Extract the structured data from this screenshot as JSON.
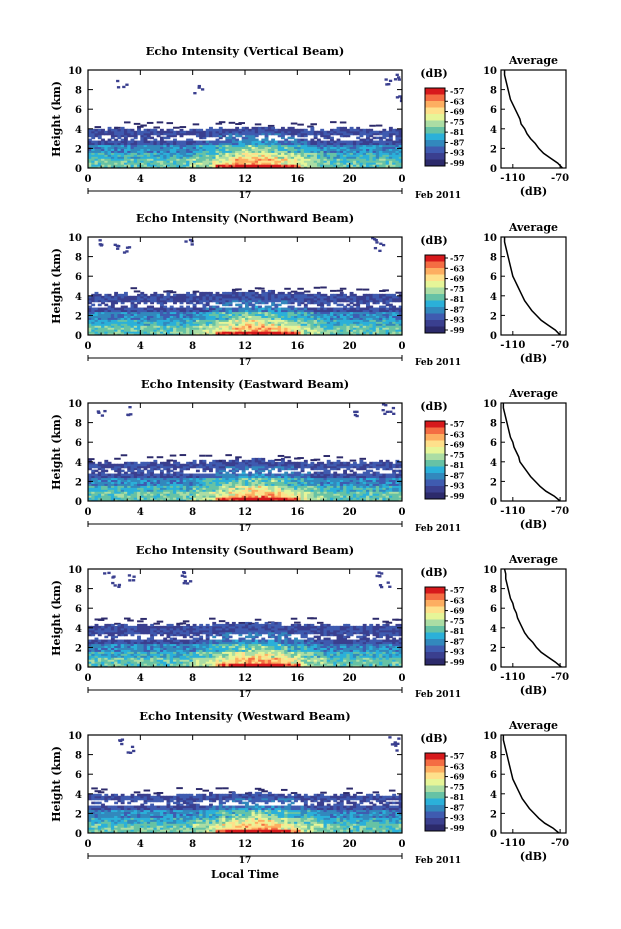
{
  "figure": {
    "bottom_xlabel": "Local Time",
    "date_label": "Feb 2011",
    "day_label": "17"
  },
  "colorbar": {
    "unit_label": "(dB)",
    "tick_labels": [
      "-57",
      "-63",
      "-69",
      "-75",
      "-81",
      "-87",
      "-93",
      "-99"
    ],
    "colors": [
      "#d7191c",
      "#f46d43",
      "#fdae61",
      "#fee08b",
      "#e6f598",
      "#abdda4",
      "#66c2a5",
      "#2bb0d9",
      "#3288bd",
      "#3f5bb0",
      "#3a3f8f",
      "#2c2a6b"
    ]
  },
  "chart_data": [
    {
      "type": "heatmap",
      "title": "Echo Intensity (Vertical Beam)",
      "ylabel": "Height (km)",
      "xlabel": "Local Time",
      "x_ticks": [
        "0",
        "4",
        "8",
        "12",
        "16",
        "20",
        "0"
      ],
      "y_ticks": [
        "0",
        "2",
        "4",
        "6",
        "8",
        "10"
      ],
      "xlim": [
        0,
        24
      ],
      "ylim": [
        0,
        10
      ],
      "top_layer_km": 4.0,
      "sparse_high": [
        [
          2.5,
          8.7
        ],
        [
          8.3,
          8.1
        ],
        [
          22.8,
          8.8
        ],
        [
          23.4,
          9.5
        ],
        [
          23.6,
          7.2
        ]
      ],
      "profile": {
        "title": "Average",
        "xlabel": "(dB)",
        "x_ticks": [
          "-110",
          "-70"
        ],
        "xlim": [
          -120,
          -65
        ],
        "heights_km": [
          0,
          0.5,
          1,
          1.5,
          2,
          2.5,
          3,
          3.5,
          4,
          4.5,
          5,
          5.5,
          6,
          6.5,
          7,
          7.5,
          8,
          8.5,
          9,
          9.5,
          10
        ],
        "values_db": [
          -68,
          -72,
          -78,
          -84,
          -88,
          -91,
          -95,
          -98,
          -100,
          -103,
          -104,
          -106,
          -108,
          -110,
          -112,
          -113,
          -114,
          -115,
          -116,
          -117,
          -117
        ]
      }
    },
    {
      "type": "heatmap",
      "title": "Echo Intensity (Northward Beam)",
      "ylabel": "Height (km)",
      "xlabel": "Local Time",
      "x_ticks": [
        "0",
        "4",
        "8",
        "12",
        "16",
        "20",
        "0"
      ],
      "y_ticks": [
        "0",
        "2",
        "4",
        "6",
        "8",
        "10"
      ],
      "xlim": [
        0,
        24
      ],
      "ylim": [
        0,
        10
      ],
      "top_layer_km": 4.2,
      "sparse_high": [
        [
          0.8,
          9.4
        ],
        [
          1.9,
          9.2
        ],
        [
          2.8,
          8.9
        ],
        [
          7.5,
          9.6
        ],
        [
          21.9,
          9.6
        ],
        [
          22.2,
          9.1
        ]
      ],
      "profile": {
        "title": "Average",
        "xlabel": "(dB)",
        "x_ticks": [
          "-110",
          "-70"
        ],
        "xlim": [
          -120,
          -65
        ],
        "heights_km": [
          0,
          0.5,
          1,
          1.5,
          2,
          2.5,
          3,
          3.5,
          4,
          4.5,
          5,
          5.5,
          6,
          6.5,
          7,
          7.5,
          8,
          8.5,
          9,
          9.5,
          10
        ],
        "values_db": [
          -70,
          -74,
          -80,
          -86,
          -90,
          -94,
          -97,
          -100,
          -102,
          -104,
          -106,
          -108,
          -110,
          -111,
          -112,
          -113,
          -114,
          -115,
          -116,
          -117,
          -117
        ]
      }
    },
    {
      "type": "heatmap",
      "title": "Echo Intensity (Eastward Beam)",
      "ylabel": "Height (km)",
      "xlabel": "Local Time",
      "x_ticks": [
        "0",
        "4",
        "8",
        "12",
        "16",
        "20",
        "0"
      ],
      "y_ticks": [
        "0",
        "2",
        "4",
        "6",
        "8",
        "10"
      ],
      "xlim": [
        0,
        24
      ],
      "ylim": [
        0,
        10
      ],
      "top_layer_km": 4.0,
      "sparse_high": [
        [
          1.0,
          9.1
        ],
        [
          3.2,
          9.3
        ],
        [
          20.3,
          8.9
        ],
        [
          22.7,
          9.6
        ],
        [
          22.9,
          9.3
        ]
      ],
      "profile": {
        "title": "Average",
        "xlabel": "(dB)",
        "x_ticks": [
          "-110",
          "-70"
        ],
        "xlim": [
          -120,
          -65
        ],
        "heights_km": [
          0,
          0.5,
          1,
          1.5,
          2,
          2.5,
          3,
          3.5,
          4,
          4.5,
          5,
          5.5,
          6,
          6.5,
          7,
          7.5,
          8,
          8.5,
          9,
          9.5,
          10
        ],
        "values_db": [
          -70,
          -75,
          -82,
          -87,
          -91,
          -95,
          -98,
          -101,
          -104,
          -105,
          -107,
          -109,
          -110,
          -112,
          -113,
          -114,
          -115,
          -116,
          -117,
          -118,
          -118
        ]
      }
    },
    {
      "type": "heatmap",
      "title": "Echo Intensity (Southward Beam)",
      "ylabel": "Height (km)",
      "xlabel": "Local Time",
      "x_ticks": [
        "0",
        "4",
        "8",
        "12",
        "16",
        "20",
        "0"
      ],
      "y_ticks": [
        "0",
        "2",
        "4",
        "6",
        "8",
        "10"
      ],
      "xlim": [
        0,
        24
      ],
      "ylim": [
        0,
        10
      ],
      "top_layer_km": 4.3,
      "sparse_high": [
        [
          1.5,
          9.4
        ],
        [
          2.0,
          8.6
        ],
        [
          3.1,
          9.1
        ],
        [
          7.3,
          9.6
        ],
        [
          7.6,
          8.6
        ],
        [
          22.3,
          9.6
        ],
        [
          22.6,
          8.5
        ]
      ],
      "profile": {
        "title": "Average",
        "xlabel": "(dB)",
        "x_ticks": [
          "-110",
          "-70"
        ],
        "xlim": [
          -120,
          -65
        ],
        "heights_km": [
          0,
          0.5,
          1,
          1.5,
          2,
          2.5,
          3,
          3.5,
          4,
          4.5,
          5,
          5.5,
          6,
          6.5,
          7,
          7.5,
          8,
          8.5,
          9,
          9.5,
          10
        ],
        "values_db": [
          -69,
          -74,
          -80,
          -86,
          -90,
          -93,
          -97,
          -100,
          -102,
          -104,
          -106,
          -107,
          -109,
          -110,
          -112,
          -113,
          -114,
          -115,
          -116,
          -116,
          -117
        ]
      }
    },
    {
      "type": "heatmap",
      "title": "Echo Intensity (Westward Beam)",
      "ylabel": "Height (km)",
      "xlabel": "Local Time",
      "x_ticks": [
        "0",
        "4",
        "8",
        "12",
        "16",
        "20",
        "0"
      ],
      "y_ticks": [
        "0",
        "2",
        "4",
        "6",
        "8",
        "10"
      ],
      "xlim": [
        0,
        24
      ],
      "ylim": [
        0,
        10
      ],
      "top_layer_km": 3.9,
      "sparse_high": [
        [
          2.6,
          9.3
        ],
        [
          3.0,
          8.6
        ],
        [
          23.3,
          9.5
        ],
        [
          23.5,
          8.9
        ]
      ],
      "profile": {
        "title": "Average",
        "xlabel": "(dB)",
        "x_ticks": [
          "-110",
          "-70"
        ],
        "xlim": [
          -120,
          -65
        ],
        "heights_km": [
          0,
          0.5,
          1,
          1.5,
          2,
          2.5,
          3,
          3.5,
          4,
          4.5,
          5,
          5.5,
          6,
          6.5,
          7,
          7.5,
          8,
          8.5,
          9,
          9.5,
          10
        ],
        "values_db": [
          -71,
          -76,
          -83,
          -88,
          -92,
          -96,
          -99,
          -102,
          -104,
          -106,
          -108,
          -110,
          -111,
          -112,
          -113,
          -114,
          -115,
          -116,
          -117,
          -118,
          -118
        ]
      }
    }
  ]
}
